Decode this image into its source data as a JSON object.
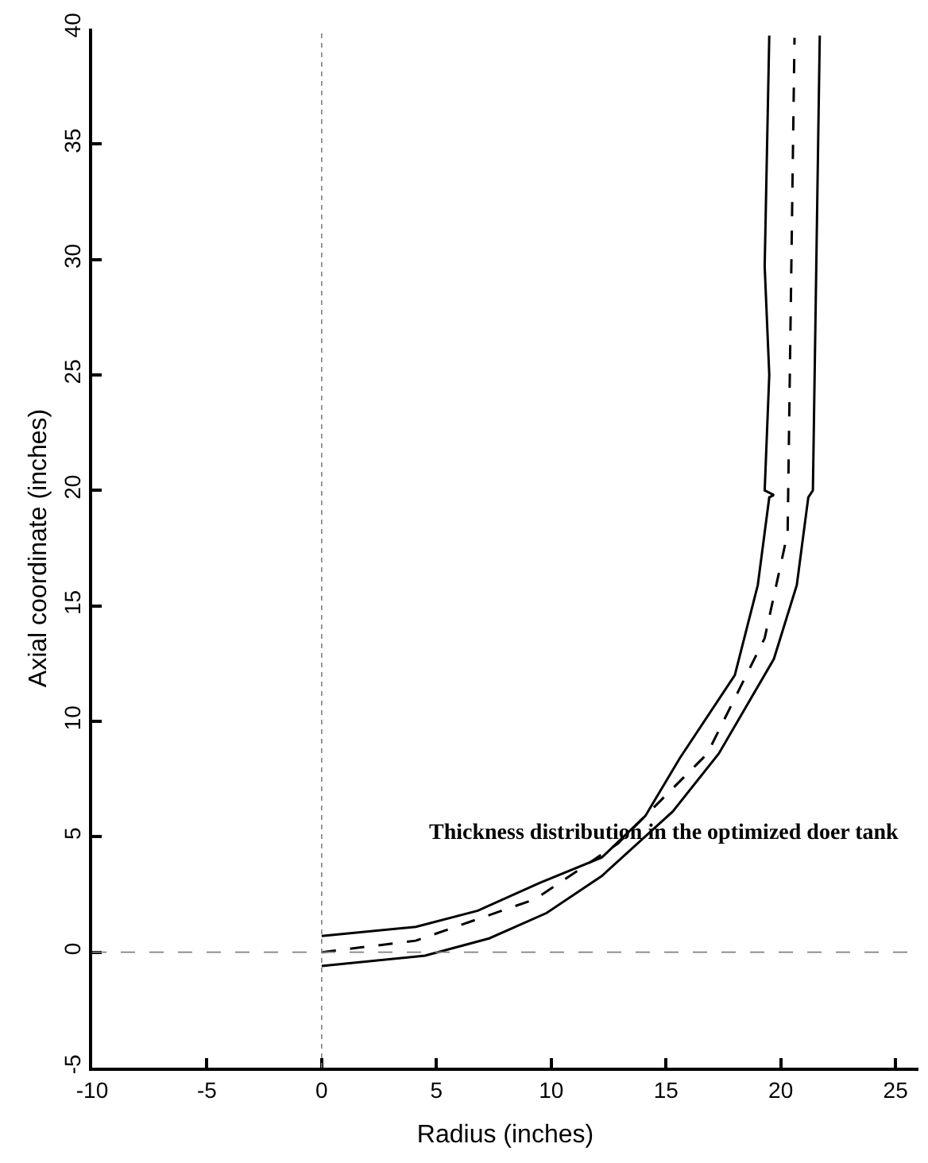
{
  "chart_data": {
    "type": "line",
    "xlabel": "Radius (inches)",
    "ylabel": "Axial coordinate (inches)",
    "annotations": [
      "Thickness distribution in the optimized doer tank"
    ],
    "xlim": [
      -10,
      26
    ],
    "xticks": [
      -10,
      -5,
      0,
      5,
      10,
      15,
      20,
      25
    ],
    "ylim": [
      -5,
      40
    ],
    "yticks": [
      -5,
      0,
      5,
      10,
      15,
      20,
      25,
      30,
      35,
      40
    ],
    "marker": "none",
    "ref_lines": [
      {
        "axis": "x",
        "value": 0,
        "color": "#808080",
        "line_style": "dotted"
      },
      {
        "axis": "y",
        "value": 0,
        "color": "#808080",
        "line_style": "dashed"
      }
    ],
    "series": [
      {
        "color": "#000000",
        "line_style": "solid",
        "x": [
          0,
          4.1,
          6.8,
          9.5,
          12.2,
          14.1,
          15.6,
          18.0,
          19.0,
          19.5,
          19.7,
          19.3,
          19.5,
          19.3,
          19.5
        ],
        "values": [
          0.7,
          1.1,
          1.8,
          3.0,
          4.1,
          5.9,
          8.4,
          12.0,
          15.9,
          19.7,
          19.8,
          20.0,
          25.0,
          29.7,
          39.7
        ]
      },
      {
        "color": "#000000",
        "line_style": "dashed",
        "x": [
          0,
          4.1,
          9.3,
          12.9,
          16.8,
          19.3,
          20.2,
          20.3,
          20.6
        ],
        "values": [
          0,
          0.5,
          2.3,
          4.7,
          8.6,
          13.6,
          17.7,
          18.2,
          39.6
        ]
      },
      {
        "color": "#000000",
        "line_style": "solid",
        "x": [
          0,
          4.5,
          7.3,
          9.8,
          12.2,
          15.3,
          17.3,
          19.7,
          20.7,
          21.2,
          21.4,
          21.7
        ],
        "values": [
          -0.6,
          -0.15,
          0.6,
          1.7,
          3.3,
          6.1,
          8.6,
          12.7,
          15.9,
          19.7,
          20.0,
          39.7
        ]
      }
    ]
  }
}
